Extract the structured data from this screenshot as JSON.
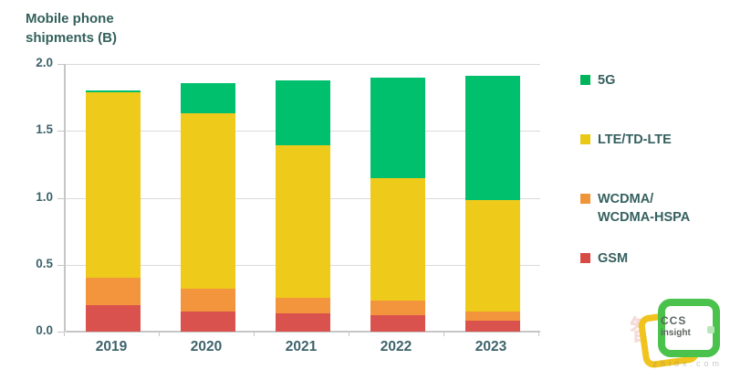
{
  "title": "Mobile phone\nshipments (B)",
  "chart_data": {
    "type": "bar",
    "stacked": true,
    "title": "Mobile phone shipments (B)",
    "xlabel": "",
    "ylabel": "Mobile phone shipments (B)",
    "categories": [
      "2019",
      "2020",
      "2021",
      "2022",
      "2023"
    ],
    "series": [
      {
        "name": "GSM",
        "color": "#d9524e",
        "values": [
          0.2,
          0.15,
          0.14,
          0.12,
          0.08
        ]
      },
      {
        "name": "WCDMA/WCDMA-HSPA",
        "color": "#f2953c",
        "values": [
          0.2,
          0.17,
          0.11,
          0.11,
          0.07
        ]
      },
      {
        "name": "LTE/TD-LTE",
        "color": "#eeca1a",
        "values": [
          1.39,
          1.31,
          1.14,
          0.92,
          0.83
        ]
      },
      {
        "name": "5G",
        "color": "#00c06d",
        "values": [
          0.01,
          0.23,
          0.49,
          0.75,
          0.93
        ]
      }
    ],
    "ylim": [
      0,
      2.0
    ],
    "yticks": [
      "2.0",
      "1.5",
      "1.0",
      "0.5",
      "0.0"
    ],
    "grid": true,
    "legend_position": "right",
    "legend": [
      {
        "label": "5G",
        "color": "#00b45c"
      },
      {
        "label": "LTE/TD-LTE",
        "color": "#e9c816"
      },
      {
        "label": "WCDMA/\nWCDMA-HSPA",
        "color": "#f0943a"
      },
      {
        "label": "GSM",
        "color": "#d84a44"
      }
    ]
  },
  "logo": {
    "line1": "CCS",
    "line2": "insight"
  },
  "watermark": {
    "cjk": "智东西",
    "latin": "zhidx.com"
  }
}
